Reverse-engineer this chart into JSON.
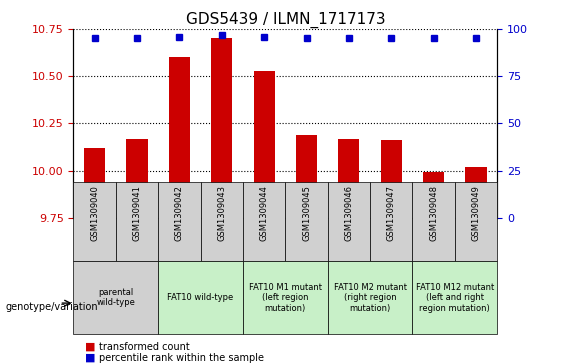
{
  "title": "GDS5439 / ILMN_1717173",
  "samples": [
    "GSM1309040",
    "GSM1309041",
    "GSM1309042",
    "GSM1309043",
    "GSM1309044",
    "GSM1309045",
    "GSM1309046",
    "GSM1309047",
    "GSM1309048",
    "GSM1309049"
  ],
  "bar_values": [
    10.12,
    10.17,
    10.6,
    10.7,
    10.53,
    10.19,
    10.17,
    10.16,
    9.99,
    10.02
  ],
  "percentile_values": [
    95,
    95,
    96,
    97,
    96,
    95,
    95,
    95,
    95,
    95
  ],
  "bar_color": "#cc0000",
  "dot_color": "#0000cc",
  "ylim_left": [
    9.75,
    10.75
  ],
  "ylim_right": [
    0,
    100
  ],
  "yticks_left": [
    9.75,
    10.0,
    10.25,
    10.5,
    10.75
  ],
  "yticks_right": [
    0,
    25,
    50,
    75,
    100
  ],
  "grid_values": [
    10.0,
    10.25,
    10.5,
    10.75
  ],
  "genotype_groups": [
    {
      "label": "parental\nwild-type",
      "start": 0,
      "end": 2,
      "color": "#d0d0d0"
    },
    {
      "label": "FAT10 wild-type",
      "start": 2,
      "end": 4,
      "color": "#c8f0c8"
    },
    {
      "label": "FAT10 M1 mutant\n(left region\nmutation)",
      "start": 4,
      "end": 6,
      "color": "#c8f0c8"
    },
    {
      "label": "FAT10 M2 mutant\n(right region\nmutation)",
      "start": 6,
      "end": 8,
      "color": "#c8f0c8"
    },
    {
      "label": "FAT10 M12 mutant\n(left and right\nregion mutation)",
      "start": 8,
      "end": 10,
      "color": "#c8f0c8"
    }
  ],
  "legend_items": [
    {
      "label": "transformed count",
      "color": "#cc0000",
      "marker": "s"
    },
    {
      "label": "percentile rank within the sample",
      "color": "#0000cc",
      "marker": "s"
    }
  ],
  "bar_width": 0.5,
  "xlabel_fontsize": 7,
  "ylabel_left_color": "#cc0000",
  "ylabel_right_color": "#0000cc",
  "title_fontsize": 11
}
